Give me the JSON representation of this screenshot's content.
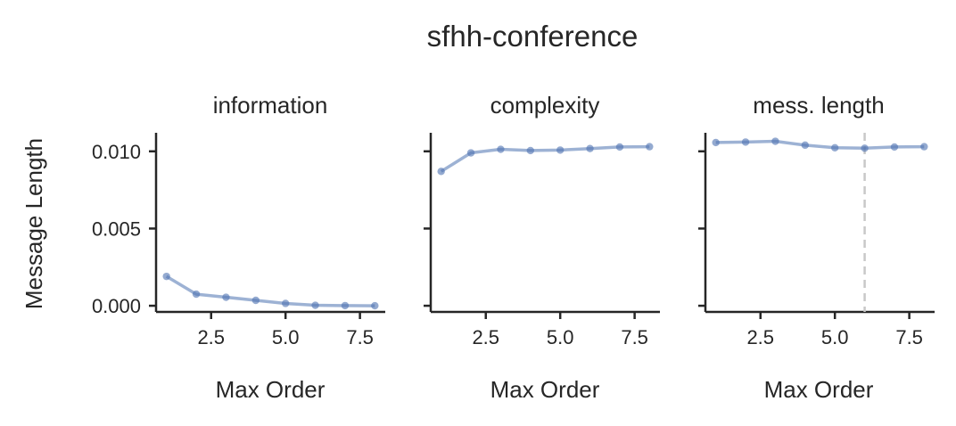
{
  "suptitle": "sfhh-conference",
  "ylabel": "Message Length",
  "chart_data": [
    {
      "type": "line",
      "title": "information",
      "xlabel": "Max Order",
      "ylabel": "Message Length",
      "x": [
        1,
        2,
        3,
        4,
        5,
        6,
        7,
        8
      ],
      "series": [
        {
          "values": [
            0.0019,
            0.00075,
            0.00055,
            0.00035,
            0.00015,
            3e-05,
            1e-05,
            0.0
          ]
        }
      ],
      "xlim": [
        0.65,
        8.35
      ],
      "ylim": [
        -0.0004,
        0.0112
      ],
      "xticks": [
        "2.5",
        "5.0",
        "7.5"
      ],
      "yticks": [
        "0.000",
        "0.005",
        "0.010"
      ],
      "grid": false,
      "color": "#4c72b0"
    },
    {
      "type": "line",
      "title": "complexity",
      "xlabel": "Max Order",
      "x": [
        1,
        2,
        3,
        4,
        5,
        6,
        7,
        8
      ],
      "series": [
        {
          "values": [
            0.0087,
            0.0099,
            0.01013,
            0.01005,
            0.01008,
            0.01018,
            0.01028,
            0.0103
          ]
        }
      ],
      "xlim": [
        0.65,
        8.35
      ],
      "ylim": [
        -0.0004,
        0.0112
      ],
      "xticks": [
        "2.5",
        "5.0",
        "7.5"
      ],
      "grid": false,
      "color": "#4c72b0"
    },
    {
      "type": "line",
      "title": "mess. length",
      "xlabel": "Max Order",
      "x": [
        1,
        2,
        3,
        4,
        5,
        6,
        7,
        8
      ],
      "series": [
        {
          "values": [
            0.01057,
            0.0106,
            0.01065,
            0.0104,
            0.01023,
            0.0102,
            0.01028,
            0.0103
          ]
        }
      ],
      "xlim": [
        0.65,
        8.35
      ],
      "ylim": [
        -0.0004,
        0.0112
      ],
      "xticks": [
        "2.5",
        "5.0",
        "7.5"
      ],
      "vline_x": 6,
      "grid": false,
      "color": "#4c72b0"
    }
  ]
}
